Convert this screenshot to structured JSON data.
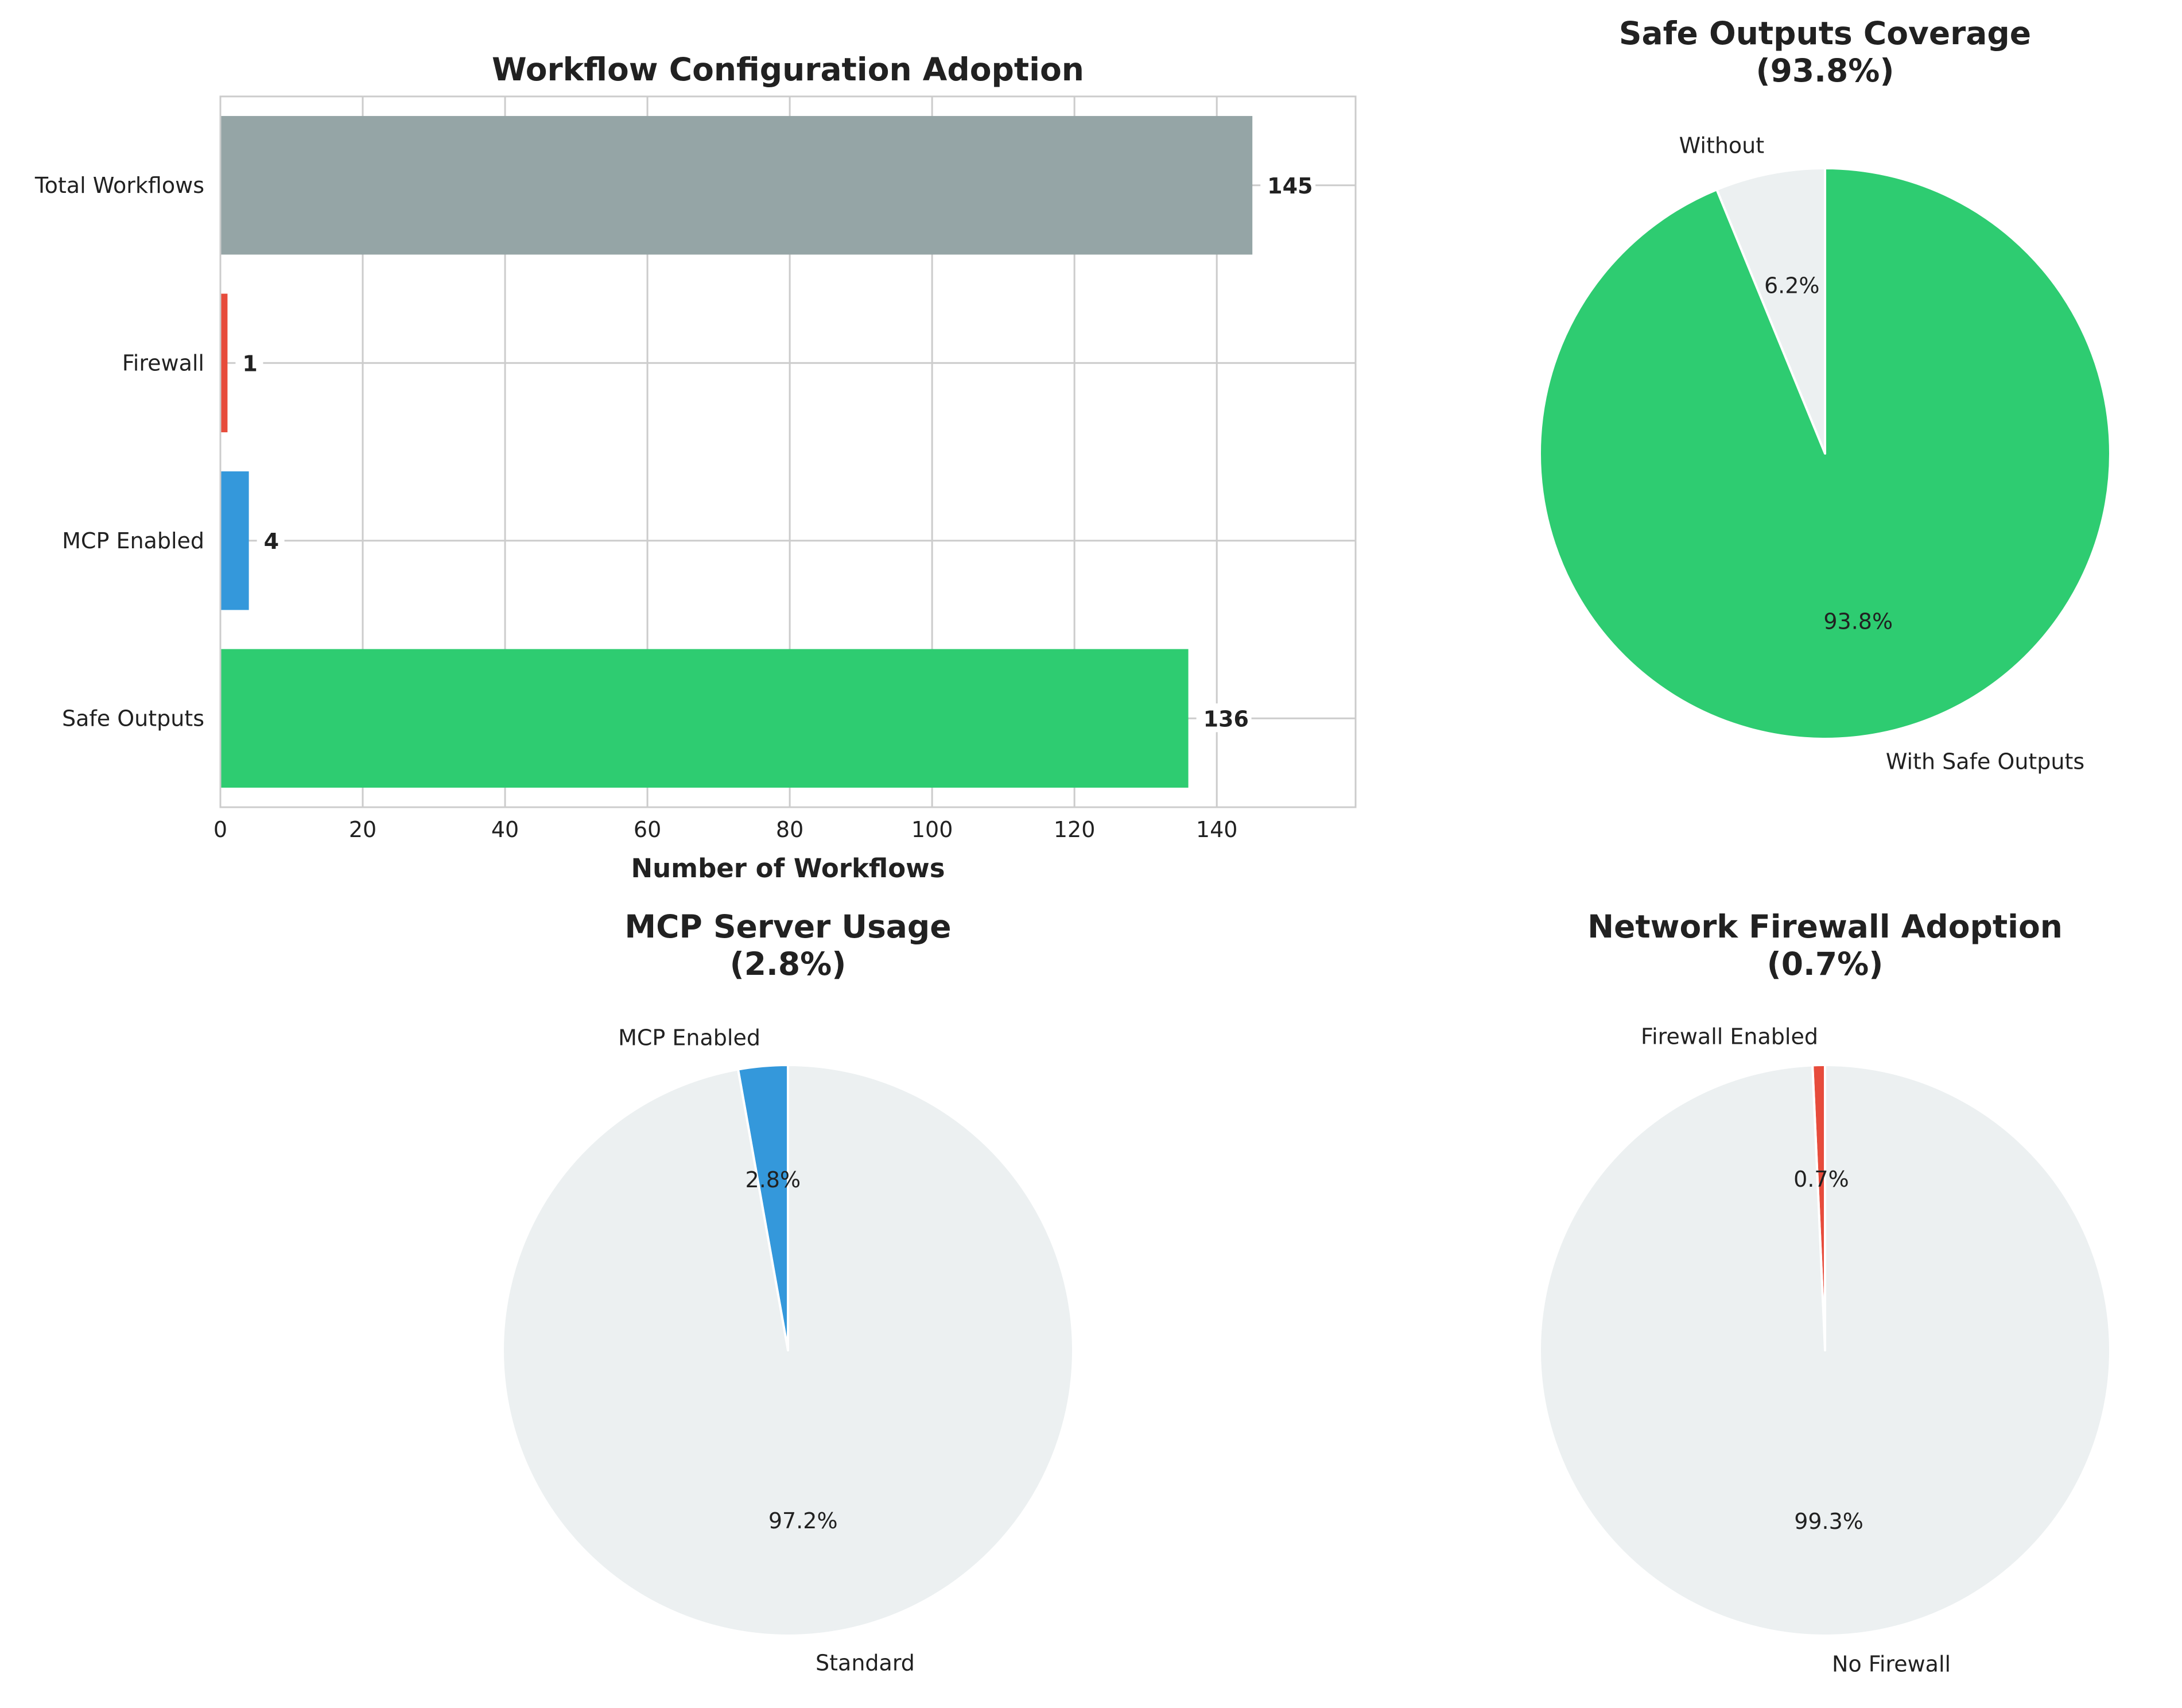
{
  "chart_data": [
    {
      "type": "bar",
      "orientation": "horizontal",
      "title": "Workflow Configuration Adoption",
      "xlabel": "Number of Workflows",
      "ylabel": "",
      "xlim": [
        0,
        159.5
      ],
      "xticks": [
        0,
        20,
        40,
        60,
        80,
        100,
        120,
        140
      ],
      "grid": true,
      "categories": [
        "Total Workflows",
        "Firewall",
        "MCP Enabled",
        "Safe Outputs"
      ],
      "values": [
        145,
        1,
        4,
        136
      ],
      "value_labels": [
        "145",
        "1",
        "4",
        "136"
      ],
      "colors": [
        "#95a5a6",
        "#e74c3c",
        "#3498db",
        "#2ecc71"
      ]
    },
    {
      "type": "pie",
      "title": "Safe Outputs Coverage",
      "subtitle": "(93.8%)",
      "labels": [
        "Without",
        "With Safe Outputs"
      ],
      "values": [
        6.2,
        93.8
      ],
      "pct_labels": [
        "6.2%",
        "93.8%"
      ],
      "colors": [
        "#ecf0f1",
        "#2ecc71"
      ]
    },
    {
      "type": "pie",
      "title": "MCP Server Usage",
      "subtitle": "(2.8%)",
      "labels": [
        "MCP Enabled",
        "Standard"
      ],
      "values": [
        2.8,
        97.2
      ],
      "pct_labels": [
        "2.8%",
        "97.2%"
      ],
      "colors": [
        "#3498db",
        "#ecf0f1"
      ]
    },
    {
      "type": "pie",
      "title": "Network Firewall Adoption",
      "subtitle": "(0.7%)",
      "labels": [
        "Firewall Enabled",
        "No Firewall"
      ],
      "values": [
        0.7,
        99.3
      ],
      "pct_labels": [
        "0.7%",
        "99.3%"
      ],
      "colors": [
        "#e74c3c",
        "#ecf0f1"
      ]
    }
  ]
}
